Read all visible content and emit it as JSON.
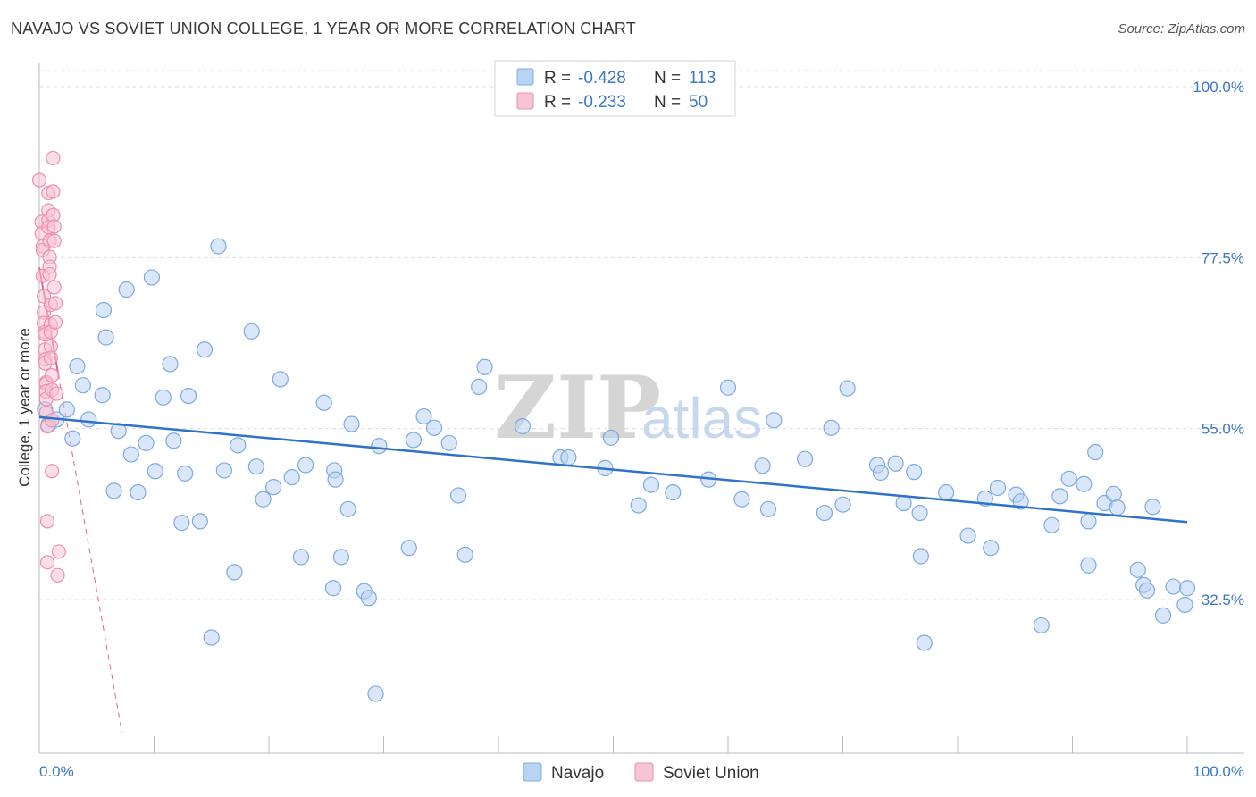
{
  "header": {
    "title": "NAVAJO VS SOVIET UNION COLLEGE, 1 YEAR OR MORE CORRELATION CHART",
    "source": "Source: ZipAtlas.com"
  },
  "watermark": {
    "zip": "ZIP",
    "atlas": "atlas"
  },
  "colors": {
    "navajo_fill": "#b9d3f3",
    "navajo_stroke": "#7eaae0",
    "navajo_line": "#2f72c9",
    "soviet_fill": "#f8c3d3",
    "soviet_stroke": "#ee8fac",
    "soviet_line": "#e0638a",
    "grid": "#dcdcdc",
    "axis_text": "#3b78c4"
  },
  "chart_data": {
    "type": "scatter",
    "title": "NAVAJO VS SOVIET UNION COLLEGE, 1 YEAR OR MORE CORRELATION CHART",
    "ylabel": "College, 1 year or more",
    "xlabel": "",
    "xlim": [
      0,
      100
    ],
    "ylim": [
      14.5,
      100
    ],
    "x_tick_labels": [
      "0.0%",
      "100.0%"
    ],
    "y_ticks": [
      {
        "value": 100.0,
        "label": "100.0%"
      },
      {
        "value": 77.5,
        "label": "77.5%"
      },
      {
        "value": 55.0,
        "label": "55.0%"
      },
      {
        "value": 32.5,
        "label": "32.5%"
      }
    ],
    "grid": true,
    "legend": {
      "placement": "top-center",
      "entries": [
        {
          "series": "Navajo",
          "r_label": "R =",
          "r": "-0.428",
          "n_label": "N =",
          "n": "113"
        },
        {
          "series": "Soviet Union",
          "r_label": "R =",
          "r": "-0.233",
          "n_label": "N =",
          "n": "50"
        }
      ]
    },
    "bottom_legend": [
      "Navajo",
      "Soviet Union"
    ],
    "series": [
      {
        "name": "Navajo",
        "trend": {
          "x": [
            0,
            100
          ],
          "y": [
            56.5,
            42.7
          ]
        },
        "points": [
          [
            0.5,
            57.5
          ],
          [
            0.8,
            55.5
          ],
          [
            1.5,
            56.2
          ],
          [
            2.4,
            57.5
          ],
          [
            2.9,
            53.7
          ],
          [
            3.3,
            63.2
          ],
          [
            3.8,
            60.7
          ],
          [
            4.3,
            56.2
          ],
          [
            5.5,
            59.4
          ],
          [
            5.6,
            70.6
          ],
          [
            5.8,
            67.0
          ],
          [
            6.5,
            46.8
          ],
          [
            6.9,
            54.7
          ],
          [
            7.6,
            73.3
          ],
          [
            8.0,
            51.6
          ],
          [
            8.6,
            46.6
          ],
          [
            9.3,
            53.1
          ],
          [
            9.8,
            74.9
          ],
          [
            10.1,
            49.4
          ],
          [
            10.8,
            59.1
          ],
          [
            11.4,
            63.5
          ],
          [
            11.7,
            53.4
          ],
          [
            12.4,
            42.6
          ],
          [
            12.7,
            49.1
          ],
          [
            13.0,
            59.3
          ],
          [
            14.0,
            42.8
          ],
          [
            14.4,
            65.4
          ],
          [
            15.0,
            27.5
          ],
          [
            15.6,
            79.0
          ],
          [
            16.1,
            49.5
          ],
          [
            17.0,
            36.1
          ],
          [
            17.3,
            52.8
          ],
          [
            18.5,
            67.8
          ],
          [
            18.9,
            50.0
          ],
          [
            19.5,
            45.7
          ],
          [
            20.4,
            47.3
          ],
          [
            21.0,
            61.5
          ],
          [
            22.0,
            48.6
          ],
          [
            22.8,
            38.1
          ],
          [
            23.2,
            50.2
          ],
          [
            24.8,
            58.4
          ],
          [
            25.6,
            34.0
          ],
          [
            25.7,
            49.5
          ],
          [
            25.8,
            48.3
          ],
          [
            26.3,
            38.1
          ],
          [
            26.9,
            44.4
          ],
          [
            27.2,
            55.6
          ],
          [
            28.3,
            33.6
          ],
          [
            28.7,
            32.7
          ],
          [
            29.3,
            20.1
          ],
          [
            29.6,
            52.7
          ],
          [
            32.2,
            39.3
          ],
          [
            32.6,
            53.5
          ],
          [
            33.5,
            56.6
          ],
          [
            34.4,
            55.1
          ],
          [
            35.7,
            53.1
          ],
          [
            36.5,
            46.2
          ],
          [
            37.1,
            38.4
          ],
          [
            38.3,
            60.5
          ],
          [
            38.8,
            63.1
          ],
          [
            42.1,
            55.3
          ],
          [
            45.4,
            51.2
          ],
          [
            46.1,
            51.2
          ],
          [
            49.3,
            49.8
          ],
          [
            49.8,
            53.8
          ],
          [
            52.2,
            44.9
          ],
          [
            53.3,
            47.6
          ],
          [
            55.2,
            46.6
          ],
          [
            58.3,
            48.3
          ],
          [
            60.0,
            60.4
          ],
          [
            61.2,
            45.7
          ],
          [
            63.0,
            50.1
          ],
          [
            63.5,
            44.4
          ],
          [
            64.0,
            56.1
          ],
          [
            66.7,
            51.0
          ],
          [
            68.4,
            43.9
          ],
          [
            69.0,
            55.1
          ],
          [
            70.0,
            45.0
          ],
          [
            70.4,
            60.3
          ],
          [
            73.0,
            50.2
          ],
          [
            73.3,
            49.2
          ],
          [
            74.6,
            50.4
          ],
          [
            75.3,
            45.2
          ],
          [
            76.2,
            49.3
          ],
          [
            76.7,
            43.9
          ],
          [
            76.8,
            38.2
          ],
          [
            77.1,
            26.8
          ],
          [
            79.0,
            46.6
          ],
          [
            80.9,
            40.9
          ],
          [
            82.4,
            45.8
          ],
          [
            82.9,
            39.3
          ],
          [
            83.5,
            47.2
          ],
          [
            85.1,
            46.3
          ],
          [
            85.5,
            45.4
          ],
          [
            87.3,
            29.1
          ],
          [
            88.2,
            42.3
          ],
          [
            88.9,
            46.1
          ],
          [
            89.7,
            48.4
          ],
          [
            91.0,
            47.7
          ],
          [
            91.4,
            42.8
          ],
          [
            91.4,
            37.0
          ],
          [
            92.0,
            51.9
          ],
          [
            92.8,
            45.2
          ],
          [
            93.6,
            46.4
          ],
          [
            93.9,
            44.6
          ],
          [
            95.7,
            36.4
          ],
          [
            96.2,
            34.4
          ],
          [
            96.5,
            33.7
          ],
          [
            97.0,
            44.7
          ],
          [
            97.9,
            30.4
          ],
          [
            98.8,
            34.2
          ],
          [
            100.0,
            34.0
          ],
          [
            99.8,
            31.8
          ]
        ]
      },
      {
        "name": "Soviet Union",
        "trend": {
          "x": [
            0,
            7.2
          ],
          "y": [
            76.2,
            15.0
          ]
        },
        "points": [
          [
            0.0,
            87.7
          ],
          [
            0.2,
            82.2
          ],
          [
            0.2,
            80.7
          ],
          [
            0.3,
            79.0
          ],
          [
            0.3,
            78.5
          ],
          [
            0.3,
            75.1
          ],
          [
            0.4,
            72.4
          ],
          [
            0.4,
            70.3
          ],
          [
            0.4,
            68.9
          ],
          [
            0.5,
            67.7
          ],
          [
            0.5,
            67.4
          ],
          [
            0.5,
            65.4
          ],
          [
            0.5,
            64.1
          ],
          [
            0.5,
            63.6
          ],
          [
            0.6,
            61.1
          ],
          [
            0.6,
            60.9
          ],
          [
            0.6,
            59.9
          ],
          [
            0.6,
            58.9
          ],
          [
            0.6,
            57.1
          ],
          [
            0.7,
            55.3
          ],
          [
            0.7,
            37.4
          ],
          [
            0.7,
            42.8
          ],
          [
            0.8,
            86.0
          ],
          [
            0.8,
            83.7
          ],
          [
            0.8,
            82.4
          ],
          [
            0.8,
            81.5
          ],
          [
            0.9,
            79.7
          ],
          [
            0.9,
            77.6
          ],
          [
            0.9,
            76.3
          ],
          [
            0.9,
            75.3
          ],
          [
            1.0,
            71.3
          ],
          [
            1.0,
            68.7
          ],
          [
            1.0,
            67.7
          ],
          [
            1.0,
            65.8
          ],
          [
            1.0,
            64.3
          ],
          [
            1.1,
            62.0
          ],
          [
            1.1,
            60.1
          ],
          [
            1.1,
            56.1
          ],
          [
            1.1,
            49.4
          ],
          [
            1.2,
            90.6
          ],
          [
            1.2,
            86.2
          ],
          [
            1.2,
            83.1
          ],
          [
            1.3,
            81.6
          ],
          [
            1.3,
            79.7
          ],
          [
            1.3,
            73.6
          ],
          [
            1.4,
            71.5
          ],
          [
            1.4,
            69.0
          ],
          [
            1.5,
            59.6
          ],
          [
            1.6,
            35.7
          ],
          [
            1.7,
            38.8
          ]
        ]
      }
    ]
  },
  "legend_rows": [
    {
      "r_label": "R =",
      "r": "-0.428",
      "n_label": "N =",
      "n": "113"
    },
    {
      "r_label": "R =",
      "r": "-0.233",
      "n_label": "N =",
      "n": "50"
    }
  ]
}
